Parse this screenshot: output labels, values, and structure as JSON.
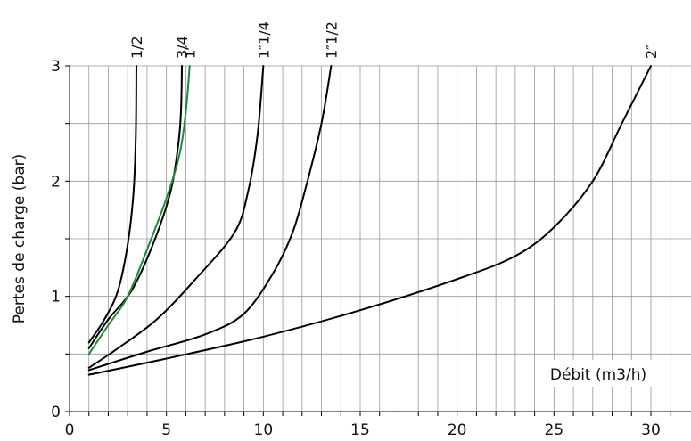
{
  "chart_data": {
    "type": "line",
    "title": "",
    "xlabel": "Débit (m3/h)",
    "ylabel": "Pertes de charge (bar)",
    "xlim": [
      0,
      31.5
    ],
    "ylim": [
      0,
      3
    ],
    "x_ticks": [
      0,
      5,
      10,
      15,
      20,
      25,
      30
    ],
    "y_ticks": [
      0,
      1,
      2,
      3
    ],
    "x_minor_step": 1,
    "y_minor_step": 0.5,
    "grid": true,
    "series": [
      {
        "name": "1/2",
        "color": "#000000",
        "points": [
          [
            1,
            0.6
          ],
          [
            1.8,
            0.8
          ],
          [
            2.5,
            1.05
          ],
          [
            3.0,
            1.45
          ],
          [
            3.3,
            1.9
          ],
          [
            3.42,
            2.4
          ],
          [
            3.45,
            3.0
          ]
        ]
      },
      {
        "name": "3/4",
        "color": "#000000",
        "points": [
          [
            1,
            0.55
          ],
          [
            2.0,
            0.8
          ],
          [
            3.2,
            1.05
          ],
          [
            4.3,
            1.45
          ],
          [
            5.2,
            1.9
          ],
          [
            5.6,
            2.3
          ],
          [
            5.75,
            2.6
          ],
          [
            5.8,
            3.0
          ]
        ]
      },
      {
        "name": "1″",
        "color": "#1a8a3a",
        "points": [
          [
            1,
            0.5
          ],
          [
            2.0,
            0.75
          ],
          [
            3.0,
            1.0
          ],
          [
            4.1,
            1.45
          ],
          [
            5.1,
            1.9
          ],
          [
            5.7,
            2.25
          ],
          [
            6.0,
            2.6
          ],
          [
            6.2,
            3.0
          ]
        ]
      },
      {
        "name": "1″1/4",
        "color": "#000000",
        "points": [
          [
            1,
            0.38
          ],
          [
            2.5,
            0.55
          ],
          [
            4.5,
            0.8
          ],
          [
            6.5,
            1.15
          ],
          [
            8.5,
            1.55
          ],
          [
            9.2,
            1.9
          ],
          [
            9.7,
            2.4
          ],
          [
            10.0,
            3.0
          ]
        ]
      },
      {
        "name": "1″1/2",
        "color": "#000000",
        "points": [
          [
            1,
            0.36
          ],
          [
            4,
            0.52
          ],
          [
            7,
            0.67
          ],
          [
            9,
            0.85
          ],
          [
            10.5,
            1.2
          ],
          [
            11.5,
            1.55
          ],
          [
            12.2,
            1.95
          ],
          [
            13.0,
            2.5
          ],
          [
            13.5,
            3.0
          ]
        ]
      },
      {
        "name": "2″",
        "color": "#000000",
        "points": [
          [
            1,
            0.32
          ],
          [
            5,
            0.46
          ],
          [
            10,
            0.65
          ],
          [
            15,
            0.88
          ],
          [
            20,
            1.15
          ],
          [
            23,
            1.35
          ],
          [
            25,
            1.6
          ],
          [
            27,
            2.0
          ],
          [
            28.5,
            2.5
          ],
          [
            30,
            3.0
          ]
        ]
      }
    ]
  }
}
